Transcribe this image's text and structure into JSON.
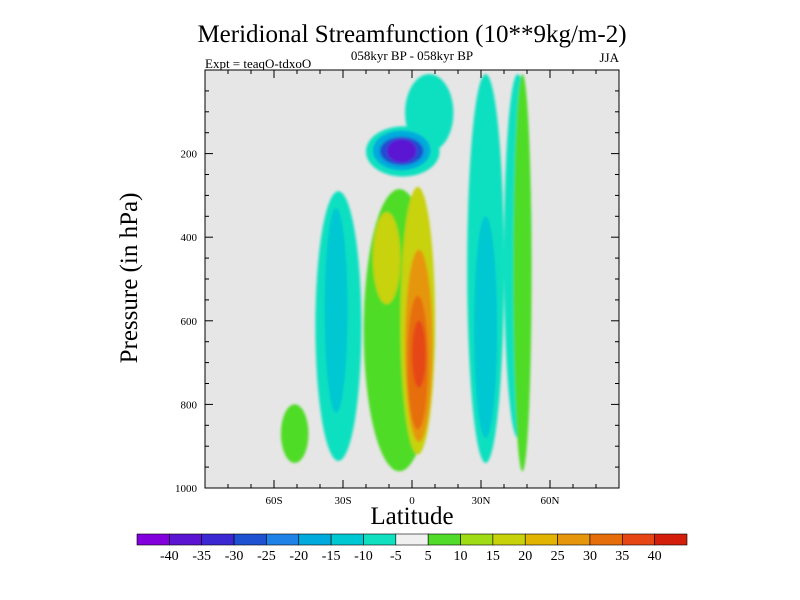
{
  "chart_data": {
    "type": "contour",
    "title": "Meridional Streamfunction (10**9kg/m-2)",
    "subtitle": "058kyr BP - 058kyr BP",
    "left_label": "Expt = teaqO-tdxoO",
    "right_label": "JJA",
    "xlabel": "Latitude",
    "ylabel": "Pressure (in hPa)",
    "xlim": [
      -90,
      90
    ],
    "ylim": [
      0,
      1000
    ],
    "x_ticks": [
      {
        "value": -60,
        "label": "60S"
      },
      {
        "value": -30,
        "label": "30S"
      },
      {
        "value": 0,
        "label": "0"
      },
      {
        "value": 30,
        "label": "30N"
      },
      {
        "value": 60,
        "label": "60N"
      }
    ],
    "y_ticks": [
      {
        "value": 200,
        "label": "200"
      },
      {
        "value": 400,
        "label": "400"
      },
      {
        "value": 600,
        "label": "600"
      },
      {
        "value": 800,
        "label": "800"
      },
      {
        "value": 1000,
        "label": "1000"
      }
    ],
    "contour_levels": [
      -40,
      -35,
      -30,
      -25,
      -20,
      -15,
      -10,
      -5,
      5,
      10,
      15,
      20,
      25,
      30,
      35,
      40
    ],
    "colorbar_colors": [
      "#8200dc",
      "#5a14d2",
      "#3c28d2",
      "#1e50d2",
      "#1e82e6",
      "#00aadc",
      "#00c8d2",
      "#10e0c0",
      "#f0f0f0",
      "#50dc28",
      "#a0dc14",
      "#c8d20a",
      "#e0b400",
      "#e6960a",
      "#e66e0a",
      "#e64614",
      "#d21e0a"
    ],
    "regions": [
      {
        "lat": [
          -42,
          -22
        ],
        "p": [
          290,
          935
        ],
        "value": -7
      },
      {
        "lat": [
          -38,
          -28
        ],
        "p": [
          330,
          820
        ],
        "value": -12
      },
      {
        "lat": [
          -3,
          18
        ],
        "p": [
          10,
          195
        ],
        "value": -7
      },
      {
        "lat": [
          -20,
          12
        ],
        "p": [
          135,
          255
        ],
        "value": -10
      },
      {
        "lat": [
          -17,
          8
        ],
        "p": [
          145,
          240
        ],
        "value": -20
      },
      {
        "lat": [
          -14,
          5
        ],
        "p": [
          160,
          228
        ],
        "value": -30
      },
      {
        "lat": [
          -11,
          2
        ],
        "p": [
          165,
          222
        ],
        "value": -40
      },
      {
        "lat": [
          24,
          40
        ],
        "p": [
          10,
          940
        ],
        "value": -7
      },
      {
        "lat": [
          27,
          37
        ],
        "p": [
          350,
          880
        ],
        "value": -12
      },
      {
        "lat": [
          40,
          52
        ],
        "p": [
          10,
          880
        ],
        "value": -7
      },
      {
        "lat": [
          44,
          52
        ],
        "p": [
          10,
          960
        ],
        "value": 7
      },
      {
        "lat": [
          -57,
          -45
        ],
        "p": [
          800,
          940
        ],
        "value": 7
      },
      {
        "lat": [
          -21,
          10
        ],
        "p": [
          285,
          960
        ],
        "value": 7
      },
      {
        "lat": [
          -17,
          -5
        ],
        "p": [
          340,
          560
        ],
        "value": 17
      },
      {
        "lat": [
          -5,
          10
        ],
        "p": [
          280,
          920
        ],
        "value": 17
      },
      {
        "lat": [
          -3,
          9
        ],
        "p": [
          430,
          890
        ],
        "value": 27
      },
      {
        "lat": [
          -2,
          7
        ],
        "p": [
          540,
          860
        ],
        "value": 33
      },
      {
        "lat": [
          0,
          6
        ],
        "p": [
          600,
          760
        ],
        "value": 38
      }
    ],
    "colorbar_labels": [
      "-40",
      "-35",
      "-30",
      "-25",
      "-20",
      "-15",
      "-10",
      "-5",
      "5",
      "10",
      "15",
      "20",
      "25",
      "30",
      "35",
      "40"
    ]
  }
}
